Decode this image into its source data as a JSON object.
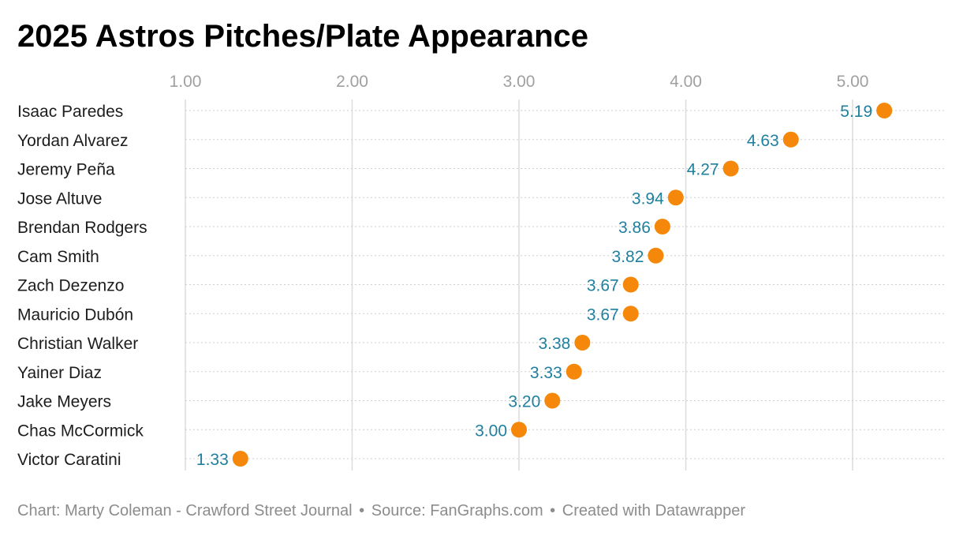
{
  "chart_data": {
    "type": "dot",
    "title": "2025 Astros Pitches/Plate Appearance",
    "xlabel": "",
    "ylabel": "",
    "xlim": [
      1.0,
      5.5
    ],
    "xticks": [
      1.0,
      2.0,
      3.0,
      4.0,
      5.0
    ],
    "xtick_labels": [
      "1.00",
      "2.00",
      "3.00",
      "4.00",
      "5.00"
    ],
    "categories": [
      "Isaac Paredes",
      "Yordan Alvarez",
      "Jeremy Peña",
      "Jose Altuve",
      "Brendan Rodgers",
      "Cam Smith",
      "Zach Dezenzo",
      "Mauricio Dubón",
      "Christian Walker",
      "Yainer Diaz",
      "Jake Meyers",
      "Chas McCormick",
      "Victor Caratini"
    ],
    "values": [
      5.19,
      4.63,
      4.27,
      3.94,
      3.86,
      3.82,
      3.67,
      3.67,
      3.38,
      3.33,
      3.2,
      3.0,
      1.33
    ],
    "value_labels": [
      "5.19",
      "4.63",
      "4.27",
      "3.94",
      "3.86",
      "3.82",
      "3.67",
      "3.67",
      "3.38",
      "3.33",
      "3.20",
      "3.00",
      "1.33"
    ],
    "colors": {
      "dot": "#f5870a",
      "value_label": "#1f7f9f",
      "tick_label": "#a0a0a0",
      "gridline": "#dcdcdc",
      "row_line": "#cfcfcf"
    }
  },
  "footer": {
    "chart_credit": "Chart: Marty Coleman - Crawford Street Journal",
    "source": "Source: FanGraphs.com",
    "created_with": "Created with Datawrapper",
    "separator": "•"
  }
}
